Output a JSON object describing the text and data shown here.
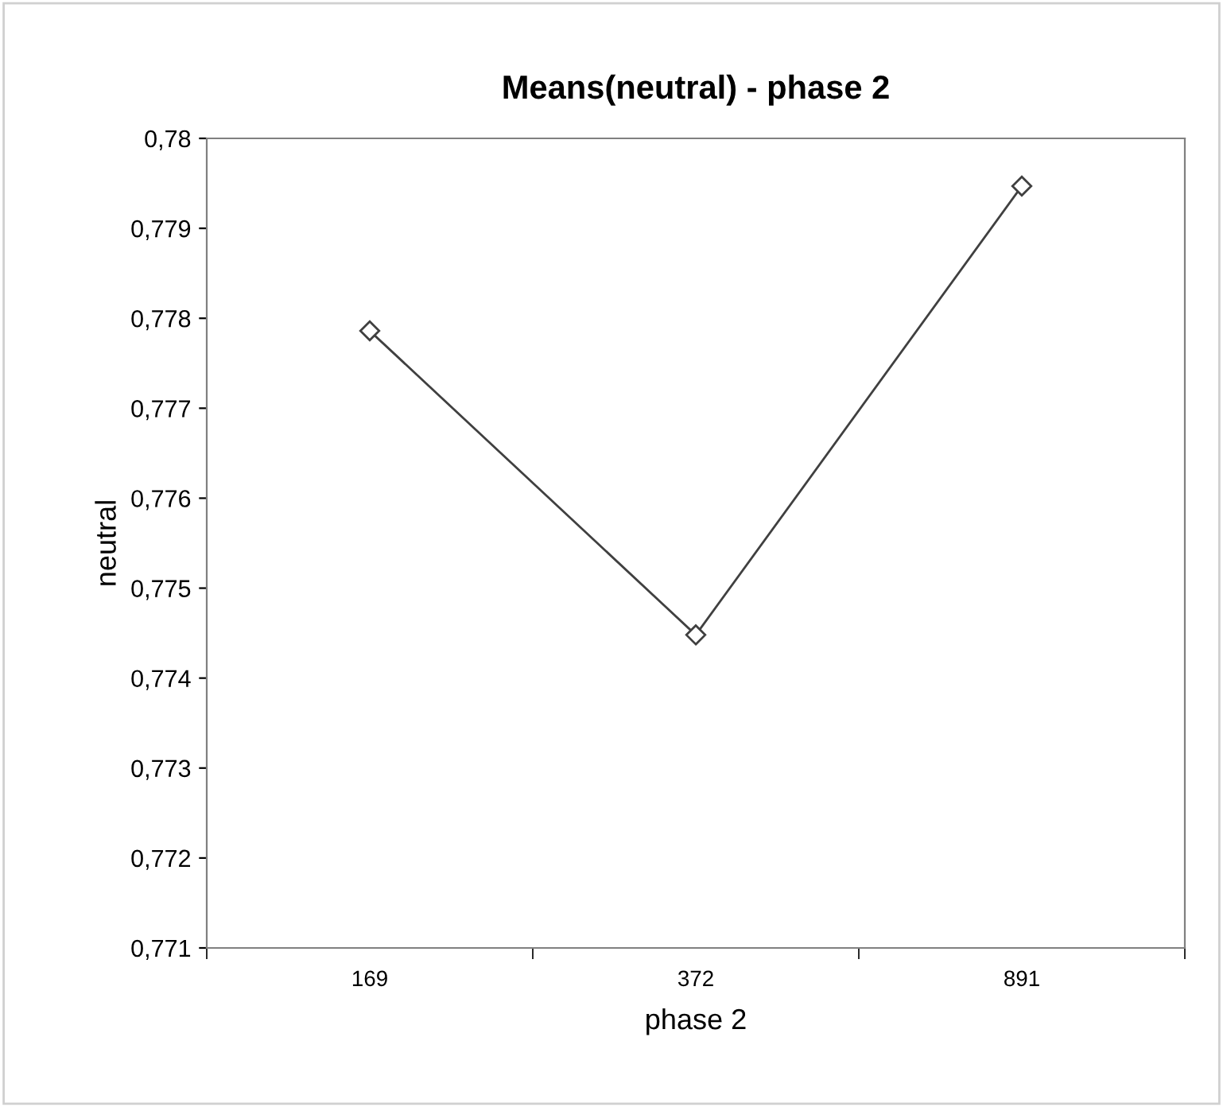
{
  "chart_data": {
    "type": "line",
    "title": "Means(neutral) - phase 2",
    "xlabel": "phase 2",
    "ylabel": "neutral",
    "categories": [
      "169",
      "372",
      "891"
    ],
    "series": [
      {
        "color": "#404040",
        "values": [
          0.77786,
          0.77448,
          0.77947
        ]
      }
    ],
    "ylim": [
      0.771,
      0.78
    ],
    "yticks": [
      {
        "value": 0.771,
        "label": "0,771"
      },
      {
        "value": 0.772,
        "label": "0,772"
      },
      {
        "value": 0.773,
        "label": "0,773"
      },
      {
        "value": 0.774,
        "label": "0,774"
      },
      {
        "value": 0.775,
        "label": "0,775"
      },
      {
        "value": 0.776,
        "label": "0,776"
      },
      {
        "value": 0.777,
        "label": "0,777"
      },
      {
        "value": 0.778,
        "label": "0,778"
      },
      {
        "value": 0.779,
        "label": "0,779"
      },
      {
        "value": 0.78,
        "label": "0,78"
      }
    ],
    "grid": false,
    "legend": false,
    "marker": "diamond",
    "line_style": "solid"
  }
}
